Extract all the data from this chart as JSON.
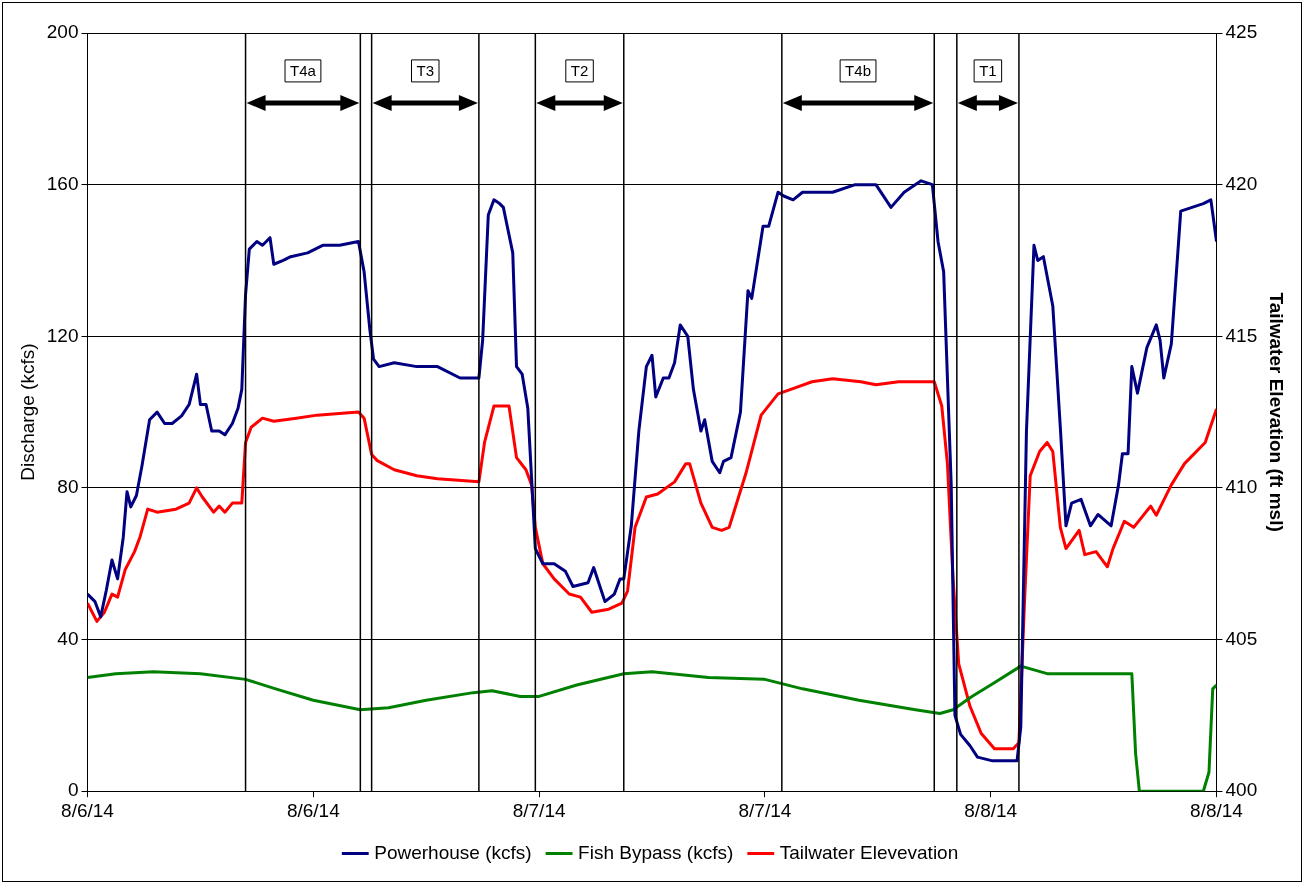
{
  "chart_data": {
    "type": "line",
    "ylabel": "Discharge (kcfs)",
    "y2label": "Tailwater Elevation (ft msl)",
    "xlim": [
      "--08-06T00:00",
      "--08-08T12:00"
    ],
    "xticks": [
      {
        "value": "--08-06T00:00",
        "label": "8/6/14"
      },
      {
        "value": "--08-06T12:00",
        "label": "8/6/14"
      },
      {
        "value": "--08-07T00:00",
        "label": "8/7/14"
      },
      {
        "value": "--08-07T12:00",
        "label": "8/7/14"
      },
      {
        "value": "--08-08T00:00",
        "label": "8/8/14"
      },
      {
        "value": "--08-08T12:00",
        "label": "8/8/14"
      }
    ],
    "ylim": [
      0,
      200
    ],
    "yticks": [
      0,
      40,
      80,
      120,
      160,
      200
    ],
    "y2lim": [
      400,
      425
    ],
    "y2ticks": [
      400,
      405,
      410,
      415,
      420,
      425
    ],
    "grid": "y",
    "legend": "bottom",
    "marker": "none",
    "line_style": "solid",
    "series": [
      {
        "name": "Powerhouse (kcfs)",
        "color": "#000080",
        "x": [
          "--08-06T00:00",
          "--08-06T00:24",
          "--08-06T00:42",
          "--08-06T01:00",
          "--08-06T01:18",
          "--08-06T01:36",
          "--08-06T01:54",
          "--08-06T02:06",
          "--08-06T02:18",
          "--08-06T02:36",
          "--08-06T02:54",
          "--08-06T03:18",
          "--08-06T03:42",
          "--08-06T04:06",
          "--08-06T04:30",
          "--08-06T05:00",
          "--08-06T05:24",
          "--08-06T05:48",
          "--08-06T06:00",
          "--08-06T06:18",
          "--08-06T06:36",
          "--08-06T07:00",
          "--08-06T07:18",
          "--08-06T07:42",
          "--08-06T08:00",
          "--08-06T08:12",
          "--08-06T08:24",
          "--08-06T08:36",
          "--08-06T09:00",
          "--08-06T09:18",
          "--08-06T09:42",
          "--08-06T09:54",
          "--08-06T10:24",
          "--08-06T10:48",
          "--08-06T11:42",
          "--08-06T12:30",
          "--08-06T13:24",
          "--08-06T14:24",
          "--08-06T14:42",
          "--08-06T15:00",
          "--08-06T15:12",
          "--08-06T15:30",
          "--08-06T16:18",
          "--08-06T17:30",
          "--08-06T18:36",
          "--08-06T19:48",
          "--08-06T20:48",
          "--08-06T21:00",
          "--08-06T21:18",
          "--08-06T21:36",
          "--08-06T21:54",
          "--08-06T22:06",
          "--08-06T22:36",
          "--08-06T22:48",
          "--08-06T23:06",
          "--08-06T23:24",
          "--08-06T23:48",
          "--08-07T00:12",
          "--08-07T00:48",
          "--08-07T01:24",
          "--08-07T01:48",
          "--08-07T02:36",
          "--08-07T02:54",
          "--08-07T03:18",
          "--08-07T03:30",
          "--08-07T04:00",
          "--08-07T04:18",
          "--08-07T04:30",
          "--08-07T04:54",
          "--08-07T05:18",
          "--08-07T05:42",
          "--08-07T06:00",
          "--08-07T06:12",
          "--08-07T06:36",
          "--08-07T06:54",
          "--08-07T07:12",
          "--08-07T07:30",
          "--08-07T07:54",
          "--08-07T08:12",
          "--08-07T08:36",
          "--08-07T08:48",
          "--08-07T09:12",
          "--08-07T09:36",
          "--08-07T09:48",
          "--08-07T10:12",
          "--08-07T10:42",
          "--08-07T11:06",
          "--08-07T11:18",
          "--08-07T11:54",
          "--08-07T12:12",
          "--08-07T12:42",
          "--08-07T13:00",
          "--08-07T13:30",
          "--08-07T14:00",
          "--08-07T14:24",
          "--08-07T15:36",
          "--08-07T16:48",
          "--08-07T17:54",
          "--08-07T18:42",
          "--08-07T19:24",
          "--08-07T20:18",
          "--08-07T20:54",
          "--08-07T21:12",
          "--08-07T21:30",
          "--08-07T21:54",
          "--08-07T22:06",
          "--08-07T22:24",
          "--08-07T22:54",
          "--08-07T23:18",
          "--08-08T00:06",
          "--08-08T01:24",
          "--08-08T01:36",
          "--08-08T01:54",
          "--08-08T02:18",
          "--08-08T02:30",
          "--08-08T02:48",
          "--08-08T03:18",
          "--08-08T03:42",
          "--08-08T04:00",
          "--08-08T04:18",
          "--08-08T04:48",
          "--08-08T05:18",
          "--08-08T05:42",
          "--08-08T06:24",
          "--08-08T06:48",
          "--08-08T07:00",
          "--08-08T07:18",
          "--08-08T07:30",
          "--08-08T07:48",
          "--08-08T08:18",
          "--08-08T08:48",
          "--08-08T09:00",
          "--08-08T09:12",
          "--08-08T09:36",
          "--08-08T10:06",
          "--08-08T11:18",
          "--08-08T11:42",
          "--08-08T12:00"
        ],
        "values": [
          52,
          50,
          46,
          53,
          61,
          56,
          67,
          79,
          75,
          78,
          86,
          98,
          100,
          97,
          97,
          99,
          102,
          110,
          102,
          102,
          95,
          95,
          94,
          97,
          101,
          106,
          131,
          143,
          145,
          144,
          146,
          139,
          140,
          141,
          142,
          144,
          144,
          145,
          137,
          122,
          114,
          112,
          113,
          112,
          112,
          109,
          109,
          119,
          152,
          156,
          155,
          154,
          142,
          112,
          110,
          101,
          64,
          60,
          60,
          58,
          54,
          55,
          59,
          53,
          50,
          52,
          56,
          56,
          70,
          95,
          112,
          115,
          104,
          109,
          109,
          113,
          123,
          120,
          106,
          95,
          98,
          87,
          84,
          87,
          88,
          100,
          132,
          130,
          149,
          149,
          158,
          157,
          156,
          158,
          158,
          158,
          160,
          160,
          154,
          158,
          161,
          160,
          145,
          137,
          81,
          20,
          15,
          12,
          9,
          8,
          8,
          17,
          95,
          144,
          140,
          141,
          128,
          96,
          70,
          76,
          77,
          70,
          73,
          70,
          81,
          89,
          89,
          112,
          105,
          117,
          123,
          119,
          109,
          118,
          153,
          155,
          156,
          145
        ]
      },
      {
        "name": "Fish Bypass (kcfs)",
        "color": "#008000",
        "x": [
          "--08-06T00:00",
          "--08-06T01:30",
          "--08-06T03:30",
          "--08-06T06:00",
          "--08-06T08:24",
          "--08-06T10:00",
          "--08-06T12:00",
          "--08-06T14:30",
          "--08-06T16:00",
          "--08-06T18:00",
          "--08-06T20:30",
          "--08-06T21:30",
          "--08-06T23:00",
          "--08-07T00:00",
          "--08-07T02:00",
          "--08-07T04:30",
          "--08-07T06:00",
          "--08-07T09:00",
          "--08-07T12:00",
          "--08-07T14:00",
          "--08-07T17:00",
          "--08-07T20:00",
          "--08-07T21:18",
          "--08-07T22:00",
          "--08-07T23:00",
          "--08-08T00:00",
          "--08-08T01:36",
          "--08-08T03:00",
          "--08-08T06:30",
          "--08-08T07:30",
          "--08-08T07:42",
          "--08-08T07:54",
          "--08-08T11:18",
          "--08-08T11:36",
          "--08-08T11:48",
          "--08-08T12:00"
        ],
        "values": [
          30,
          31,
          31.5,
          31,
          29.5,
          27,
          24,
          21.5,
          22,
          24,
          26,
          26.5,
          25,
          25,
          28,
          31,
          31.5,
          30,
          29.5,
          27,
          24,
          21.5,
          20.5,
          21.5,
          25,
          28,
          33,
          31,
          31,
          31,
          10,
          0,
          0,
          5,
          27,
          28
        ]
      },
      {
        "name": "Tailwater Elevevation",
        "color": "#ff0000",
        "axis": "y2",
        "x": [
          "--08-06T00:00",
          "--08-06T00:30",
          "--08-06T00:54",
          "--08-06T01:18",
          "--08-06T01:36",
          "--08-06T02:00",
          "--08-06T02:30",
          "--08-06T02:48",
          "--08-06T03:12",
          "--08-06T03:42",
          "--08-06T04:42",
          "--08-06T05:24",
          "--08-06T05:48",
          "--08-06T06:06",
          "--08-06T06:42",
          "--08-06T07:00",
          "--08-06T07:18",
          "--08-06T07:42",
          "--08-06T08:12",
          "--08-06T08:24",
          "--08-06T08:42",
          "--08-06T09:18",
          "--08-06T09:54",
          "--08-06T11:06",
          "--08-06T12:12",
          "--08-06T14:24",
          "--08-06T14:42",
          "--08-06T15:06",
          "--08-06T15:24",
          "--08-06T16:18",
          "--08-06T17:30",
          "--08-06T18:36",
          "--08-06T20:48",
          "--08-06T21:06",
          "--08-06T21:36",
          "--08-06T22:24",
          "--08-06T22:48",
          "--08-06T23:18",
          "--08-06T23:36",
          "--08-06T23:48",
          "--08-07T00:12",
          "--08-07T00:48",
          "--08-07T01:36",
          "--08-07T02:12",
          "--08-07T02:48",
          "--08-07T03:42",
          "--08-07T04:24",
          "--08-07T04:42",
          "--08-07T05:06",
          "--08-07T05:42",
          "--08-07T06:18",
          "--08-07T07:12",
          "--08-07T07:48",
          "--08-07T08:00",
          "--08-07T08:36",
          "--08-07T09:12",
          "--08-07T09:42",
          "--08-07T10:06",
          "--08-07T11:00",
          "--08-07T11:48",
          "--08-07T12:42",
          "--08-07T13:36",
          "--08-07T14:30",
          "--08-07T15:36",
          "--08-07T17:06",
          "--08-07T17:54",
          "--08-07T19:06",
          "--08-07T21:00",
          "--08-07T21:24",
          "--08-07T21:42",
          "--08-07T22:00",
          "--08-07T22:18",
          "--08-07T22:54",
          "--08-07T23:30",
          "--08-08T00:12",
          "--08-08T01:12",
          "--08-08T01:30",
          "--08-08T01:48",
          "--08-08T02:06",
          "--08-08T02:36",
          "--08-08T03:00",
          "--08-08T03:18",
          "--08-08T03:42",
          "--08-08T04:00",
          "--08-08T04:42",
          "--08-08T05:00",
          "--08-08T05:36",
          "--08-08T06:12",
          "--08-08T06:30",
          "--08-08T07:06",
          "--08-08T07:36",
          "--08-08T08:30",
          "--08-08T08:48",
          "--08-08T09:36",
          "--08-08T10:18",
          "--08-08T11:24",
          "--08-08T12:00"
        ],
        "values": [
          406.2,
          405.6,
          405.9,
          406.5,
          406.4,
          407.3,
          407.9,
          408.4,
          409.3,
          409.2,
          409.3,
          409.5,
          410.0,
          409.7,
          409.2,
          409.4,
          409.2,
          409.5,
          409.5,
          411.5,
          412.0,
          412.3,
          412.2,
          412.3,
          412.4,
          412.5,
          412.3,
          411.1,
          410.9,
          410.6,
          410.4,
          410.3,
          410.2,
          411.5,
          412.7,
          412.7,
          411.0,
          410.6,
          410.1,
          408.7,
          407.5,
          407.0,
          406.5,
          406.4,
          405.9,
          406.0,
          406.2,
          406.6,
          408.7,
          409.7,
          409.8,
          410.2,
          410.8,
          410.8,
          409.5,
          408.7,
          408.6,
          408.7,
          410.5,
          412.4,
          413.1,
          413.3,
          413.5,
          413.6,
          413.5,
          413.4,
          413.5,
          413.5,
          412.7,
          410.8,
          407.0,
          404.2,
          402.8,
          401.9,
          401.4,
          401.4,
          401.6,
          406.3,
          410.4,
          411.2,
          411.5,
          411.2,
          408.7,
          408.0,
          408.6,
          407.8,
          407.9,
          407.4,
          408.0,
          408.9,
          408.7,
          409.4,
          409.1,
          410.1,
          410.8,
          411.5,
          412.6
        ]
      }
    ],
    "ref_lines": [
      {
        "axis": "x",
        "value": "--08-06T08:24",
        "color": "#000000"
      },
      {
        "axis": "x",
        "value": "--08-06T14:30",
        "color": "#000000"
      },
      {
        "axis": "x",
        "value": "--08-06T15:06",
        "color": "#000000"
      },
      {
        "axis": "x",
        "value": "--08-06T20:48",
        "color": "#000000"
      },
      {
        "axis": "x",
        "value": "--08-06T23:48",
        "color": "#000000"
      },
      {
        "axis": "x",
        "value": "--08-07T04:30",
        "color": "#000000"
      },
      {
        "axis": "x",
        "value": "--08-07T12:54",
        "color": "#000000"
      },
      {
        "axis": "x",
        "value": "--08-07T21:00",
        "color": "#000000"
      },
      {
        "axis": "x",
        "value": "--08-07T22:12",
        "color": "#000000"
      },
      {
        "axis": "x",
        "value": "--08-08T01:30",
        "color": "#000000"
      }
    ],
    "annotations": [
      {
        "text": "T4a",
        "x": "--08-06T11:27",
        "y": 190
      },
      {
        "text": "T3",
        "x": "--08-06T17:57",
        "y": 190
      },
      {
        "text": "T2",
        "x": "--08-07T02:09",
        "y": 190
      },
      {
        "text": "T4b",
        "x": "--08-07T16:57",
        "y": 190
      },
      {
        "text": "T1",
        "x": "--08-07T23:51",
        "y": 190
      }
    ]
  }
}
